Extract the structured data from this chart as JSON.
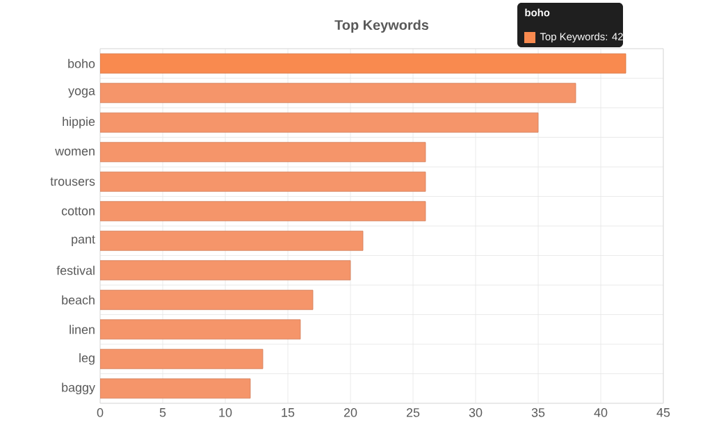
{
  "chart_data": {
    "type": "bar",
    "orientation": "horizontal",
    "title": "Top Keywords",
    "categories": [
      "boho",
      "yoga",
      "hippie",
      "women",
      "trousers",
      "cotton",
      "pant",
      "festival",
      "beach",
      "linen",
      "leg",
      "baggy"
    ],
    "values": [
      42,
      38,
      35,
      26,
      26,
      26,
      21,
      20,
      17,
      16,
      13,
      12
    ],
    "colors": [
      "#f98a4f",
      "#f5956a",
      "#f5956a",
      "#f5956a",
      "#f5956a",
      "#f5956a",
      "#f5956a",
      "#f5956a",
      "#f5956a",
      "#f5956a",
      "#f5956a",
      "#f5956a"
    ],
    "xlim": [
      0,
      45
    ],
    "xticks": [
      0,
      5,
      10,
      15,
      20,
      25,
      30,
      35,
      40,
      45
    ],
    "grid": true,
    "annotations": [
      "boho",
      "Top Keywords: 42"
    ]
  }
}
